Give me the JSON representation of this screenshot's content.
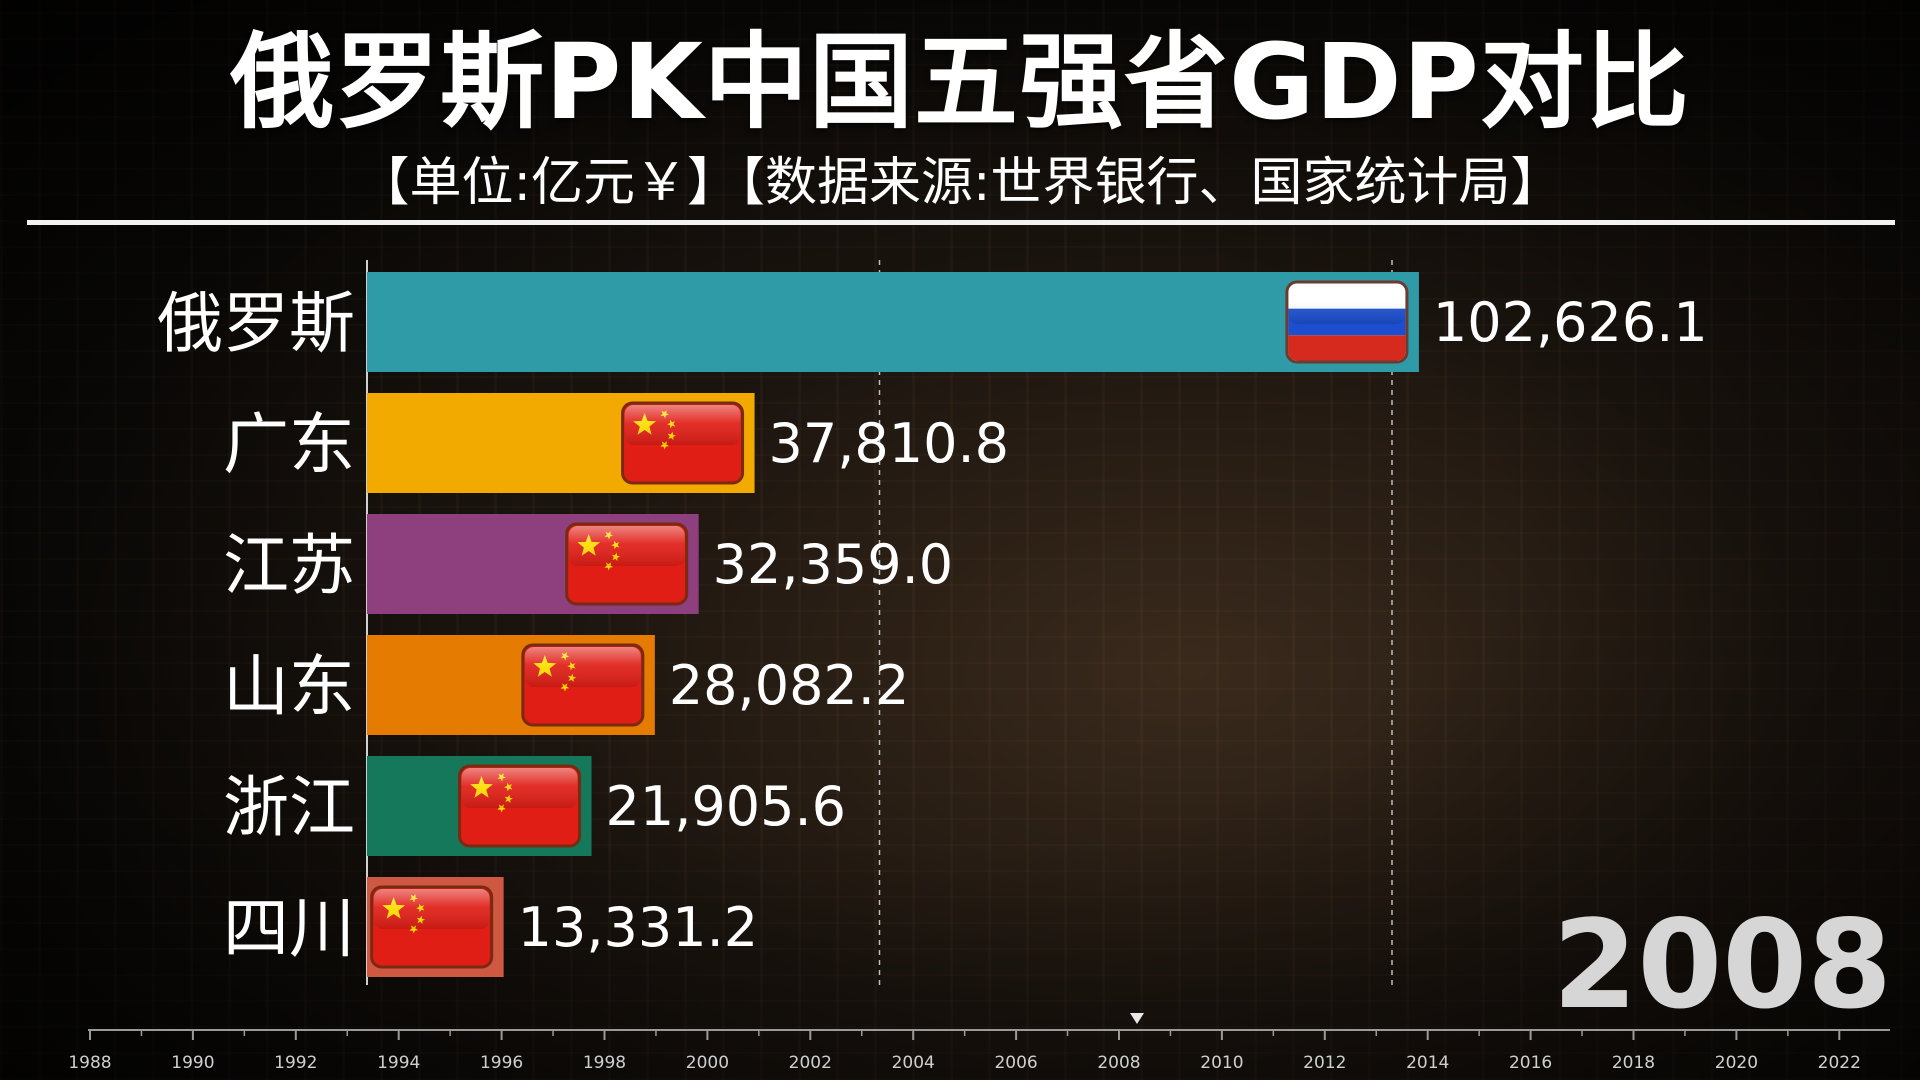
{
  "title": "俄罗斯PK中国五强省GDP对比",
  "subtitle": "【单位:亿元￥】【数据来源:世界银行、国家统计局】",
  "year": "2008",
  "chart_data": {
    "type": "bar",
    "orientation": "horizontal",
    "categories": [
      "俄罗斯",
      "广东",
      "江苏",
      "山东",
      "浙江",
      "四川"
    ],
    "values": [
      102626.1,
      37810.8,
      32359.0,
      28082.2,
      21905.6,
      13331.2
    ],
    "value_labels": [
      "102,626.1",
      "37,810.8",
      "32,359.0",
      "28,082.2",
      "21,905.6",
      "13,331.2"
    ],
    "colors": [
      "#2e9ba6",
      "#f2a900",
      "#8e3f7e",
      "#e57b00",
      "#16785a",
      "#ce5842"
    ],
    "flags": [
      "russia-flag",
      "china-flag",
      "china-flag",
      "china-flag",
      "china-flag",
      "china-flag"
    ],
    "xlim": [
      0,
      120000
    ],
    "gridlines": [
      50000,
      100000
    ],
    "timeline": {
      "ticks": [
        "1988",
        "1990",
        "1992",
        "1994",
        "1996",
        "1998",
        "2000",
        "2002",
        "2004",
        "2006",
        "2008",
        "2010",
        "2012",
        "2014",
        "2016",
        "2018",
        "2020",
        "2022"
      ],
      "current": "2008"
    }
  }
}
